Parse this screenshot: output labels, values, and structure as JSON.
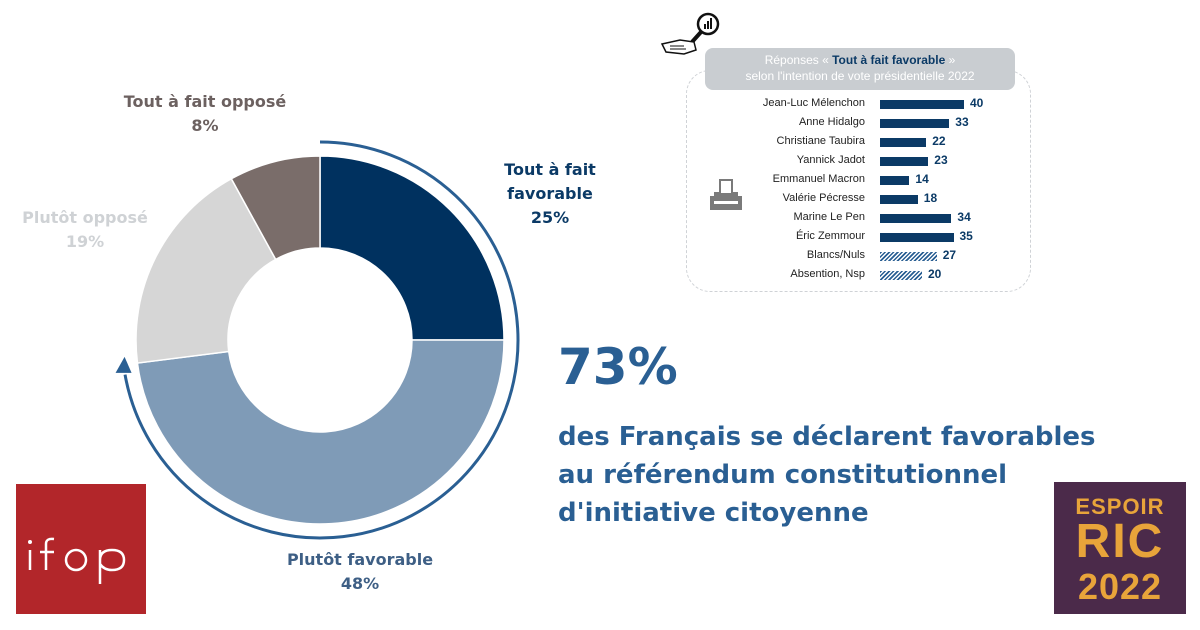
{
  "chart_data": [
    {
      "type": "pie",
      "categories": [
        "Tout à fait favorable",
        "Plutôt favorable",
        "Plutôt opposé",
        "Tout à fait opposé"
      ],
      "values": [
        25,
        48,
        19,
        8
      ],
      "value_labels": [
        "25%",
        "48%",
        "19%",
        "8%"
      ],
      "colors": [
        "#00315f",
        "#7f9bb7",
        "#d6d6d6",
        "#7a6d6a"
      ],
      "donut": true
    },
    {
      "type": "bar",
      "title": "Réponses « Tout à fait favorable » selon l'intention de vote présidentielle 2022",
      "categories": [
        "Jean-Luc Mélenchon",
        "Anne Hidalgo",
        "Christiane Taubira",
        "Yannick Jadot",
        "Emmanuel Macron",
        "Valérie Pécresse",
        "Marine Le Pen",
        "Éric Zemmour",
        "Blancs/Nuls",
        "Absention, Nsp"
      ],
      "values": [
        40,
        33,
        22,
        23,
        14,
        18,
        34,
        35,
        27,
        20
      ],
      "hatched": [
        false,
        false,
        false,
        false,
        false,
        false,
        false,
        false,
        true,
        true
      ],
      "orientation": "horizontal",
      "xlim": [
        0,
        40
      ]
    }
  ],
  "donut_labels": [
    {
      "lines": [
        "Tout à fait",
        "favorable"
      ],
      "pct": "25%"
    },
    {
      "lines": [
        "Plutôt favorable"
      ],
      "pct": "48%"
    },
    {
      "lines": [
        "Plutôt opposé"
      ],
      "pct": "19%"
    },
    {
      "lines": [
        "Tout à fait opposé"
      ],
      "pct": "8%"
    }
  ],
  "inset_header": {
    "prefix": "Réponses « ",
    "highlight": "Tout à fait favorable",
    "suffix": " »",
    "line2": "selon l'intention de vote présidentielle 2022"
  },
  "headline": {
    "percent": "73%",
    "lines": [
      "des Français se déclarent favorables",
      "au référendum constitutionnel",
      "d'initiative citoyenne"
    ]
  },
  "logos": {
    "ifop": "ifop",
    "ric": {
      "line1": "ESPOIR",
      "line2": "RIC",
      "line3": "2022"
    }
  },
  "icons": [
    "magnifier-chart-icon",
    "hand-icon",
    "ballot-box-icon",
    "curved-arrow-icon"
  ]
}
